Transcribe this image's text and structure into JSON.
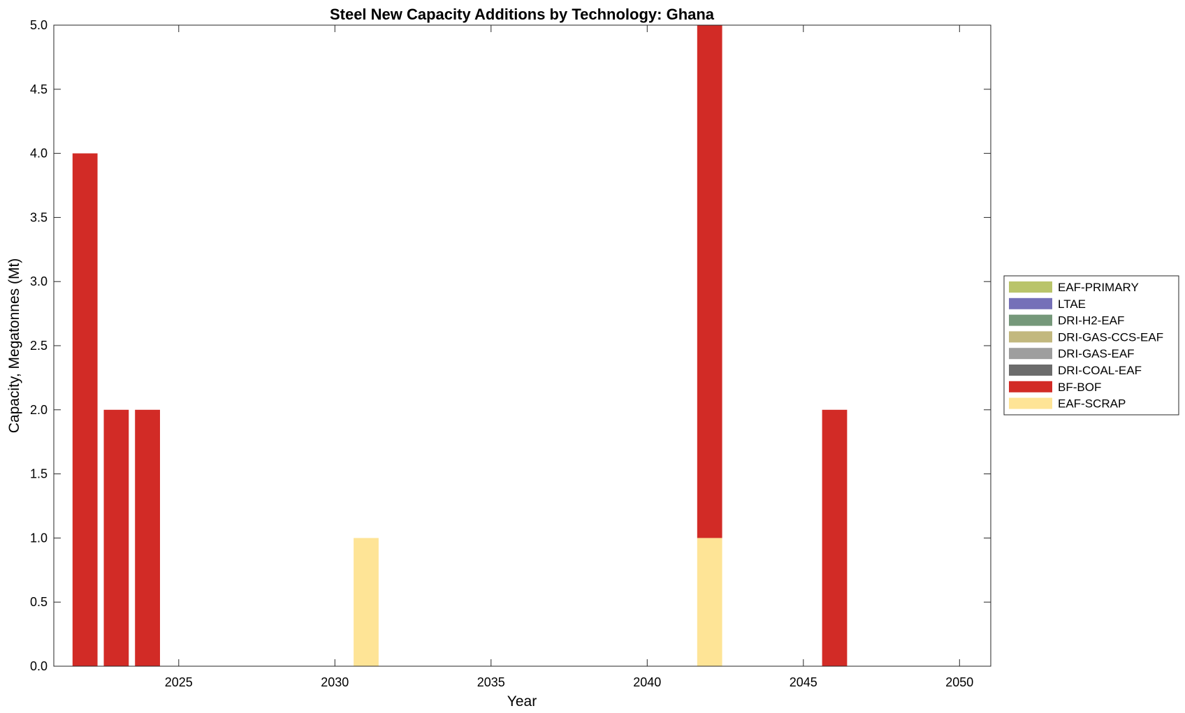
{
  "chart_data": {
    "type": "bar",
    "stacked": true,
    "title": "Steel New Capacity Additions by Technology: Ghana",
    "xlabel": "Year",
    "ylabel": "Capacity, Megatonnes (Mt)",
    "xlim": [
      2021,
      2051
    ],
    "ylim": [
      0,
      5
    ],
    "xticks": [
      2025,
      2030,
      2035,
      2040,
      2045,
      2050
    ],
    "yticks": [
      "0.0",
      "0.5",
      "1.0",
      "1.5",
      "2.0",
      "2.5",
      "3.0",
      "3.5",
      "4.0",
      "4.5",
      "5.0"
    ],
    "legend_position": "right",
    "grid": false,
    "x": [
      2022,
      2023,
      2024,
      2031,
      2042,
      2046
    ],
    "series": [
      {
        "name": "EAF-PRIMARY",
        "color": "#b9c46a",
        "values": [
          0,
          0,
          0,
          0,
          0,
          0
        ]
      },
      {
        "name": "LTAE",
        "color": "#7570b8",
        "values": [
          0,
          0,
          0,
          0,
          0,
          0
        ]
      },
      {
        "name": "DRI-H2-EAF",
        "color": "#75987a",
        "values": [
          0,
          0,
          0,
          0,
          0,
          0
        ]
      },
      {
        "name": "DRI-GAS-CCS-EAF",
        "color": "#c2b87e",
        "values": [
          0,
          0,
          0,
          0,
          0,
          0
        ]
      },
      {
        "name": "DRI-GAS-EAF",
        "color": "#9e9e9e",
        "values": [
          0,
          0,
          0,
          0,
          0,
          0
        ]
      },
      {
        "name": "DRI-COAL-EAF",
        "color": "#6c6c6c",
        "values": [
          0,
          0,
          0,
          0,
          0,
          0
        ]
      },
      {
        "name": "BF-BOF",
        "color": "#d22b26",
        "values": [
          4,
          2,
          2,
          0,
          4,
          2
        ]
      },
      {
        "name": "EAF-SCRAP",
        "color": "#fee496",
        "values": [
          0,
          0,
          0,
          1,
          1,
          0
        ]
      }
    ],
    "stack_order_bottom_to_top": [
      "EAF-SCRAP",
      "BF-BOF",
      "DRI-COAL-EAF",
      "DRI-GAS-EAF",
      "DRI-GAS-CCS-EAF",
      "DRI-H2-EAF",
      "LTAE",
      "EAF-PRIMARY"
    ]
  }
}
